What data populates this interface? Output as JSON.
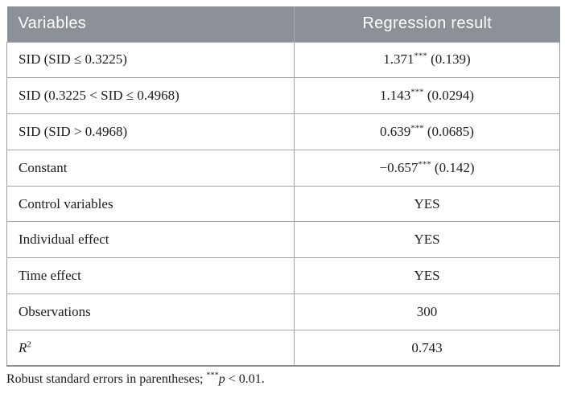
{
  "table": {
    "header": {
      "variables": "Variables",
      "result": "Regression result"
    },
    "rows": [
      {
        "variable": "SID (SID ≤ 0.3225)",
        "variable_sup": "",
        "value": "1.371",
        "stars": "***",
        "se": " (0.139)"
      },
      {
        "variable": "SID (0.3225 < SID ≤ 0.4968)",
        "variable_sup": "",
        "value": "1.143",
        "stars": "***",
        "se": " (0.0294)"
      },
      {
        "variable": "SID (SID > 0.4968)",
        "variable_sup": "",
        "value": "0.639",
        "stars": "***",
        "se": " (0.0685)"
      },
      {
        "variable": "Constant",
        "variable_sup": "",
        "value": "−0.657",
        "stars": "***",
        "se": " (0.142)"
      },
      {
        "variable": "Control variables",
        "variable_sup": "",
        "value": "YES",
        "stars": "",
        "se": ""
      },
      {
        "variable": "Individual effect",
        "variable_sup": "",
        "value": "YES",
        "stars": "",
        "se": ""
      },
      {
        "variable": "Time effect",
        "variable_sup": "",
        "value": "YES",
        "stars": "",
        "se": ""
      },
      {
        "variable": "Observations",
        "variable_sup": "",
        "value": "300",
        "stars": "",
        "se": ""
      },
      {
        "variable": "R",
        "variable_sup": "2",
        "value": "0.743",
        "stars": "",
        "se": ""
      }
    ],
    "footnote": {
      "prefix": "Robust standard errors in parentheses; ",
      "stars": "***",
      "p": "p",
      "suffix": " < 0.01."
    },
    "colors": {
      "header_bg": "#8b9197",
      "header_divider": "#a6abaf",
      "row_border": "#a5a5a5",
      "header_text": "#ffffff",
      "body_text": "#1c1c1c"
    }
  }
}
